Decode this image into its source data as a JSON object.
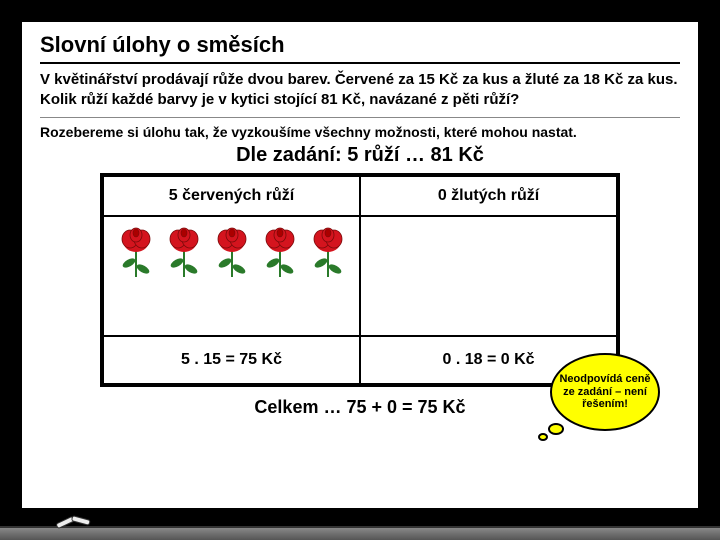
{
  "title": "Slovní úlohy o směsích",
  "problem": "V květinářství prodávají růže dvou barev. Červené za 15 Kč za kus a žluté za 18 Kč za kus. Kolik růží každé barvy je v kytici stojící 81 Kč, navázané z pěti růží?",
  "explain": "Rozebereme si úlohu tak, že vyzkoušíme všechny možnosti, které mohou nastat.",
  "zadani": "Dle zadání: 5 růží … 81 Kč",
  "table": {
    "header_left": "5 červených růží",
    "header_right": "0 žlutých růží",
    "calc_left": "5 . 15 = 75 Kč",
    "calc_right": "0 . 18 = 0 Kč",
    "red_count": 5,
    "yellow_count": 0
  },
  "total": "Celkem … 75 + 0 = 75 Kč",
  "bubble": "Neodpovídá ceně ze zadání – není řešením!",
  "colors": {
    "rose_red": "#d4141e",
    "rose_green": "#2a7a2a",
    "bubble_bg": "#ffff00",
    "board_bg": "#ffffff",
    "frame": "#000000"
  }
}
